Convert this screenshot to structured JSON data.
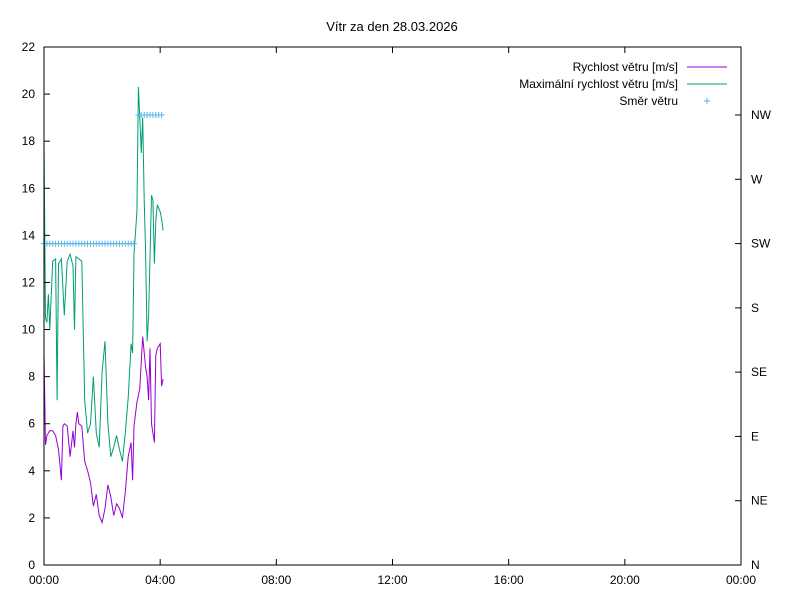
{
  "chart_data": {
    "type": "line",
    "title": "Vítr za den 28.03.2026",
    "xlabel": "",
    "ylabel": "",
    "x_unit": "hours of day",
    "xlim": [
      0,
      24
    ],
    "ylim": [
      0,
      22
    ],
    "x_tick_values": [
      0,
      4,
      8,
      12,
      16,
      20,
      24
    ],
    "x_tick_labels": [
      "00:00",
      "04:00",
      "08:00",
      "12:00",
      "16:00",
      "20:00",
      "00:00"
    ],
    "y_tick_labels": [
      "0",
      "2",
      "4",
      "6",
      "8",
      "10",
      "12",
      "14",
      "16",
      "18",
      "20",
      "22"
    ],
    "y2_tick_labels": [
      "N",
      "NE",
      "E",
      "SE",
      "S",
      "SW",
      "W",
      "NW"
    ],
    "grid": false,
    "legend_position": "top-right",
    "series": [
      {
        "name": "Rychlost větru [m/s]",
        "color": "#9400d3",
        "axis": "y",
        "x": [
          0.0,
          0.05,
          0.1,
          0.15,
          0.2,
          0.3,
          0.4,
          0.5,
          0.6,
          0.65,
          0.7,
          0.8,
          0.9,
          1.0,
          1.05,
          1.1,
          1.15,
          1.2,
          1.3,
          1.4,
          1.5,
          1.6,
          1.7,
          1.8,
          1.9,
          2.0,
          2.1,
          2.2,
          2.3,
          2.4,
          2.5,
          2.6,
          2.7,
          2.8,
          2.9,
          3.0,
          3.05,
          3.1,
          3.2,
          3.3,
          3.4,
          3.5,
          3.55,
          3.6,
          3.65,
          3.7,
          3.8,
          3.85,
          3.9,
          4.0,
          4.05,
          4.1
        ],
        "values": [
          9.0,
          5.1,
          5.5,
          5.6,
          5.7,
          5.7,
          5.5,
          4.9,
          3.6,
          5.9,
          6.0,
          5.9,
          4.6,
          5.7,
          5.0,
          6.0,
          6.5,
          6.0,
          5.9,
          4.4,
          4.0,
          3.5,
          2.5,
          3.0,
          2.1,
          1.8,
          2.4,
          3.4,
          2.9,
          2.1,
          2.6,
          2.4,
          2.0,
          3.1,
          4.6,
          5.2,
          3.6,
          5.9,
          6.9,
          7.5,
          9.7,
          8.4,
          8.0,
          7.0,
          9.2,
          6.0,
          5.2,
          8.9,
          9.2,
          9.4,
          7.6,
          7.9
        ]
      },
      {
        "name": "Maximální rychlost větru [m/s]",
        "color": "#009e73",
        "axis": "y",
        "x": [
          0.0,
          0.05,
          0.1,
          0.15,
          0.2,
          0.3,
          0.4,
          0.45,
          0.5,
          0.6,
          0.7,
          0.8,
          0.9,
          1.0,
          1.05,
          1.1,
          1.2,
          1.3,
          1.4,
          1.5,
          1.6,
          1.7,
          1.8,
          1.9,
          2.0,
          2.1,
          2.2,
          2.3,
          2.4,
          2.5,
          2.6,
          2.7,
          2.8,
          2.9,
          3.0,
          3.05,
          3.1,
          3.2,
          3.25,
          3.3,
          3.35,
          3.4,
          3.45,
          3.5,
          3.55,
          3.6,
          3.7,
          3.75,
          3.8,
          3.85,
          3.9,
          4.0,
          4.05,
          4.1
        ],
        "values": [
          18.0,
          10.5,
          10.3,
          11.5,
          10.0,
          12.9,
          13.0,
          7.0,
          12.8,
          13.0,
          10.6,
          12.9,
          13.2,
          12.7,
          10.0,
          13.1,
          13.0,
          12.9,
          7.0,
          5.6,
          6.0,
          8.0,
          5.6,
          5.0,
          8.2,
          9.5,
          6.0,
          4.6,
          5.0,
          5.5,
          4.9,
          4.4,
          5.6,
          7.1,
          9.4,
          9.0,
          13.2,
          15.0,
          20.3,
          19.0,
          17.5,
          19.0,
          15.5,
          13.3,
          9.5,
          10.6,
          15.7,
          15.5,
          12.8,
          14.6,
          15.3,
          15.0,
          14.7,
          14.2
        ]
      },
      {
        "name": "Směr větru",
        "color": "#56b4e9",
        "axis": "y2",
        "marker": "+",
        "x": [
          0.0,
          0.1,
          0.2,
          0.3,
          0.4,
          0.5,
          0.6,
          0.7,
          0.8,
          0.9,
          1.0,
          1.1,
          1.2,
          1.3,
          1.4,
          1.5,
          1.6,
          1.7,
          1.8,
          1.9,
          2.0,
          2.1,
          2.2,
          2.3,
          2.4,
          2.5,
          2.6,
          2.7,
          2.8,
          2.9,
          3.0,
          3.1,
          3.25,
          3.35,
          3.45,
          3.55,
          3.65,
          3.75,
          3.85,
          3.95,
          4.05
        ],
        "values": [
          "SW",
          "SW",
          "SW",
          "SW",
          "SW",
          "SW",
          "SW",
          "SW",
          "SW",
          "SW",
          "SW",
          "SW",
          "SW",
          "SW",
          "SW",
          "SW",
          "SW",
          "SW",
          "SW",
          "SW",
          "SW",
          "SW",
          "SW",
          "SW",
          "SW",
          "SW",
          "SW",
          "SW",
          "SW",
          "SW",
          "SW",
          "SW",
          "NW",
          "NW",
          "NW",
          "NW",
          "NW",
          "NW",
          "NW",
          "NW",
          "NW"
        ]
      }
    ]
  }
}
